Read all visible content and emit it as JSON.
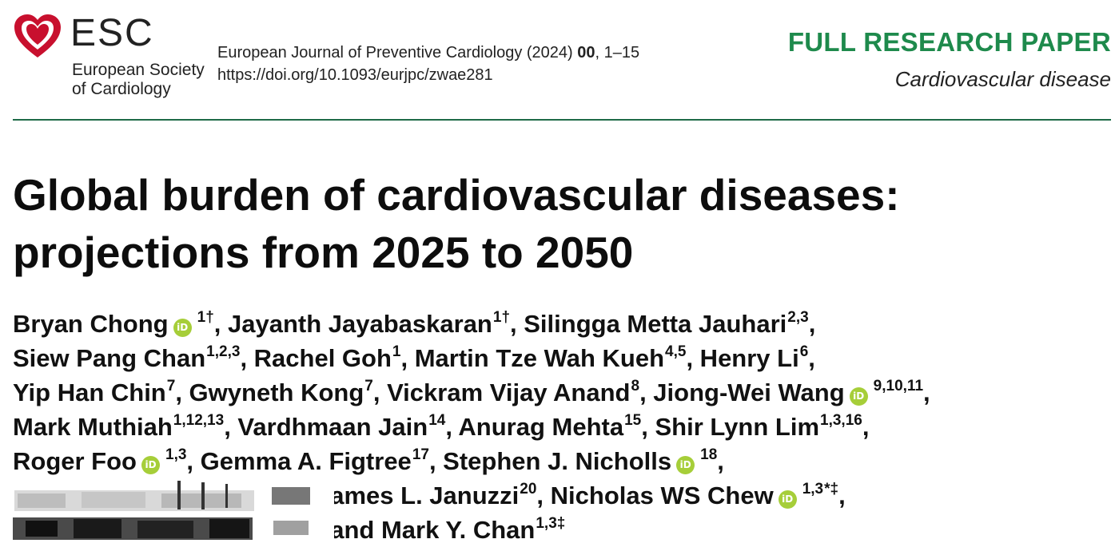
{
  "header": {
    "logo_icon": "heart-logo-icon",
    "brand_color": "#c8102e",
    "logo_abbrev": "ESC",
    "society_line1": "European Society",
    "society_line2": "of Cardiology",
    "journal_name": "European Journal of Preventive Cardiology (2024)",
    "journal_volume": "00",
    "journal_pages": ", 1–15",
    "doi": "https://doi.org/10.1093/eurjpc/zwae281",
    "paper_type": "FULL RESEARCH PAPER",
    "paper_type_color": "#1e8a4c",
    "paper_category": "Cardiovascular disease"
  },
  "title": {
    "line1": "Global burden of cardiovascular diseases:",
    "line2": "projections from 2025 to 2050"
  },
  "authors": {
    "orcid_label": "iD",
    "orcid_color": "#a6ce39",
    "l1_a1_name": "Bryan Chong",
    "l1_a1_sup": "1†",
    "l1_a2_name": ", Jayanth Jayabaskaran",
    "l1_a2_sup": "1†",
    "l1_a3_name": ", Silingga Metta Jauhari",
    "l1_a3_sup": "2,3",
    "l1_end": ",",
    "l2_a1_name": "Siew Pang Chan",
    "l2_a1_sup": "1,2,3",
    "l2_a2_name": ", Rachel Goh",
    "l2_a2_sup": "1",
    "l2_a3_name": ", Martin Tze Wah Kueh",
    "l2_a3_sup": "4,5",
    "l2_a4_name": ", Henry Li",
    "l2_a4_sup": "6",
    "l2_end": ",",
    "l3_a1_name": "Yip Han Chin",
    "l3_a1_sup": "7",
    "l3_a2_name": ", Gwyneth Kong",
    "l3_a2_sup": "7",
    "l3_a3_name": ", Vickram Vijay Anand",
    "l3_a3_sup": "8",
    "l3_a4_name": ", Jiong-Wei Wang",
    "l3_a4_sup": "9,10,11",
    "l3_end": ",",
    "l4_a1_name": "Mark Muthiah",
    "l4_a1_sup": "1,12,13",
    "l4_a2_name": ", Vardhmaan Jain",
    "l4_a2_sup": "14",
    "l4_a3_name": ", Anurag Mehta",
    "l4_a3_sup": "15",
    "l4_a4_name": ", Shir Lynn Lim",
    "l4_a4_sup": "1,3,16",
    "l4_end": ",",
    "l5_a1_name": "Roger Foo",
    "l5_a1_sup": "1,3",
    "l5_a2_name": ", Gemma A. Figtree",
    "l5_a2_sup": "17",
    "l5_a3_name": ", Stephen J. Nicholls",
    "l5_a3_sup": "18",
    "l5_end": ",",
    "l6_a1_name": "James L. Januzzi",
    "l6_a1_sup": "20",
    "l6_a2_name": ", Nicholas WS Chew",
    "l6_a2_sup": "1,3",
    "l6_a2_marks": "*‡",
    "l6_end": ",",
    "l7_prefix": ", and ",
    "l7_a1_name": "Mark Y. Chan",
    "l7_a1_sup": "1,3‡"
  }
}
